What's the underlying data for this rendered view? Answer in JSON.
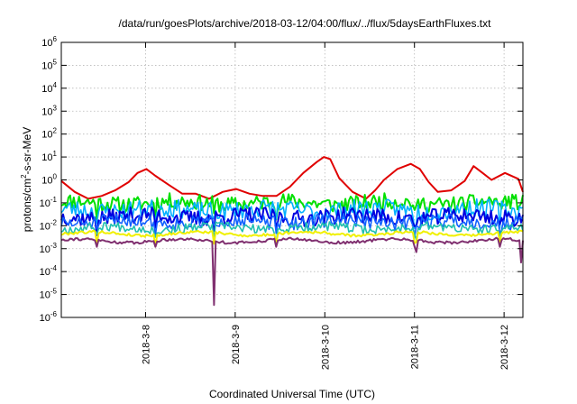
{
  "chart_data": {
    "type": "line",
    "title": "/data/run/goesPlots/archive/2018-03-12/04:00/flux/../flux/5daysEarthFluxes.txt",
    "xlabel": "Coordinated Universal Time (UTC)",
    "ylabel_prefix": "protons/cm",
    "ylabel_sup": "2",
    "ylabel_suffix": "-s-sr-MeV",
    "x_unit": "days",
    "xlim": [
      0,
      5.15
    ],
    "x_ticks": [
      {
        "value": 0.94,
        "label": "2018-3-8"
      },
      {
        "value": 1.94,
        "label": "2018-3-9"
      },
      {
        "value": 2.94,
        "label": "2018-3-10"
      },
      {
        "value": 3.94,
        "label": "2018-3-11"
      },
      {
        "value": 4.94,
        "label": "2018-3-12"
      }
    ],
    "y_scale": "log",
    "ylim_exp": [
      -6,
      6
    ],
    "y_ticks": [
      {
        "exp": -6,
        "base": "10",
        "sup": "-6"
      },
      {
        "exp": -5,
        "base": "10",
        "sup": "-5"
      },
      {
        "exp": -4,
        "base": "10",
        "sup": "-4"
      },
      {
        "exp": -3,
        "base": "10",
        "sup": "-3"
      },
      {
        "exp": -2,
        "base": "10",
        "sup": "-2"
      },
      {
        "exp": -1,
        "base": "10",
        "sup": "-1"
      },
      {
        "exp": 0,
        "base": "10",
        "sup": "0"
      },
      {
        "exp": 1,
        "base": "10",
        "sup": "1"
      },
      {
        "exp": 2,
        "base": "10",
        "sup": "2"
      },
      {
        "exp": 3,
        "base": "10",
        "sup": "3"
      },
      {
        "exp": 4,
        "base": "10",
        "sup": "4"
      },
      {
        "exp": 5,
        "base": "10",
        "sup": "5"
      },
      {
        "exp": 6,
        "base": "10",
        "sup": "6"
      }
    ],
    "grid": true,
    "legend": "none",
    "series": [
      {
        "color": "#e00000",
        "width": 2,
        "x": [
          0,
          0.15,
          0.3,
          0.45,
          0.6,
          0.75,
          0.85,
          0.95,
          1.05,
          1.2,
          1.35,
          1.5,
          1.65,
          1.8,
          1.95,
          2.1,
          2.25,
          2.4,
          2.55,
          2.7,
          2.85,
          2.93,
          3.0,
          3.1,
          3.25,
          3.4,
          3.5,
          3.6,
          3.75,
          3.9,
          4.0,
          4.1,
          4.2,
          4.35,
          4.5,
          4.6,
          4.7,
          4.8,
          4.95,
          5.1,
          5.15
        ],
        "y": [
          0.9,
          0.3,
          0.15,
          0.2,
          0.35,
          0.8,
          2.0,
          3.0,
          1.5,
          0.6,
          0.25,
          0.25,
          0.15,
          0.3,
          0.4,
          0.25,
          0.2,
          0.2,
          0.5,
          2.0,
          6.0,
          10,
          8,
          1.2,
          0.3,
          0.15,
          0.35,
          1.0,
          3.0,
          5.0,
          3.0,
          0.8,
          0.3,
          0.35,
          0.9,
          4.0,
          2.0,
          1.0,
          2.0,
          1.1,
          0.3
        ]
      },
      {
        "color": "#00e000",
        "width": 2,
        "base": 0.1,
        "amp": 0.35,
        "seed": 11
      },
      {
        "color": "#00b0ff",
        "width": 1.6,
        "base": 0.05,
        "amp": 0.4,
        "seed": 23
      },
      {
        "color": "#0000e0",
        "width": 2,
        "base": 0.025,
        "amp": 0.35,
        "seed": 37
      },
      {
        "color": "#1060ff",
        "width": 1.6,
        "base": 0.015,
        "amp": 0.3,
        "seed": 51
      },
      {
        "color": "#20c0b0",
        "width": 1.6,
        "base": 0.008,
        "amp": 0.2,
        "seed": 67
      },
      {
        "color": "#f0f000",
        "width": 2,
        "base": 0.0045,
        "amp": 0.06,
        "seed": 79
      },
      {
        "color": "#803070",
        "width": 2,
        "base": 0.0022,
        "amp": 0.06,
        "seed": 91,
        "dips": [
          {
            "x": 1.7,
            "y": 3.5e-06
          },
          {
            "x": 0.4,
            "y": 0.0012
          },
          {
            "x": 1.05,
            "y": 0.0012
          },
          {
            "x": 2.4,
            "y": 0.0012
          },
          {
            "x": 3.95,
            "y": 0.0012
          },
          {
            "x": 4.9,
            "y": 0.0012
          },
          {
            "x": 5.13,
            "y": 0.00025
          }
        ]
      }
    ]
  }
}
